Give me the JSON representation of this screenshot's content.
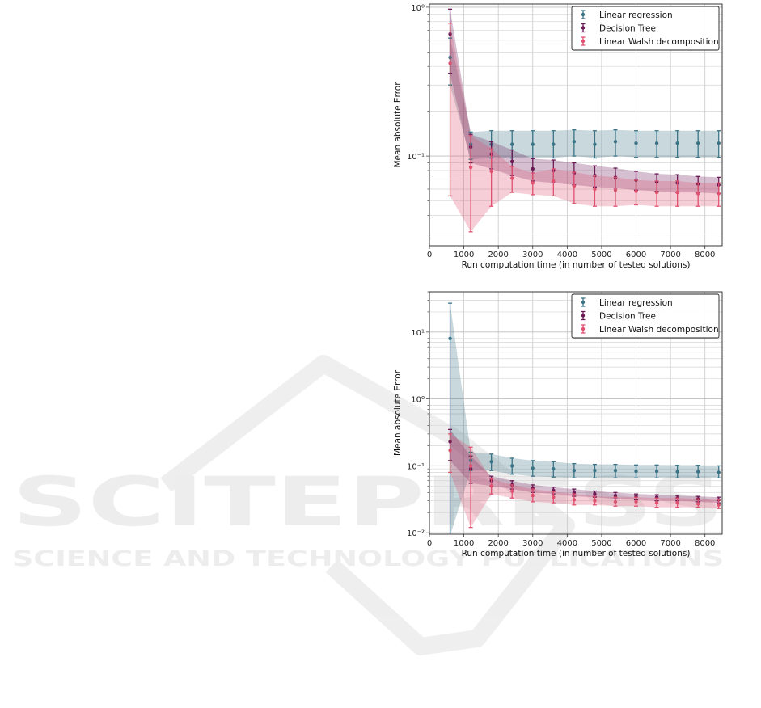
{
  "watermark": {
    "title": "SCITEPRESS",
    "subtitle": "SCIENCE AND TECHNOLOGY PUBLICATIONS"
  },
  "colors": {
    "linear_regression": "#3a7486",
    "decision_tree": "#6b1a55",
    "walsh": "#e0506f"
  },
  "chart_data": [
    {
      "type": "line",
      "xlabel": "Run computation time (in number of tested solutions)",
      "ylabel": "Mean absolute Error",
      "yscale": "log",
      "xlim": [
        0,
        8500
      ],
      "ylim": [
        0.025,
        1.05
      ],
      "xticks": [
        0,
        1000,
        2000,
        3000,
        4000,
        5000,
        6000,
        7000,
        8000
      ],
      "yticks": [
        {
          "value": 1,
          "label": "10⁰"
        },
        {
          "value": 0.1,
          "label": "10⁻¹"
        }
      ],
      "grid": true,
      "legend": "top-right",
      "x": [
        600,
        1200,
        1800,
        2400,
        3000,
        3600,
        4200,
        4800,
        5400,
        6000,
        6600,
        7200,
        7800,
        8400
      ],
      "series": [
        {
          "name": "Linear regression",
          "color_key": "linear_regression",
          "values": [
            0.46,
            0.12,
            0.12,
            0.12,
            0.12,
            0.12,
            0.125,
            0.12,
            0.125,
            0.122,
            0.122,
            0.122,
            0.122,
            0.122
          ],
          "lower": [
            0.3,
            0.095,
            0.097,
            0.097,
            0.097,
            0.097,
            0.1,
            0.097,
            0.1,
            0.098,
            0.098,
            0.098,
            0.098,
            0.098
          ],
          "upper": [
            0.62,
            0.145,
            0.148,
            0.148,
            0.148,
            0.148,
            0.15,
            0.148,
            0.15,
            0.148,
            0.148,
            0.148,
            0.148,
            0.148
          ]
        },
        {
          "name": "Decision Tree",
          "color_key": "decision_tree",
          "values": [
            0.66,
            0.115,
            0.103,
            0.092,
            0.082,
            0.08,
            0.077,
            0.074,
            0.072,
            0.069,
            0.067,
            0.066,
            0.065,
            0.064
          ],
          "lower": [
            0.36,
            0.09,
            0.082,
            0.074,
            0.068,
            0.066,
            0.064,
            0.062,
            0.061,
            0.059,
            0.058,
            0.057,
            0.057,
            0.056
          ],
          "upper": [
            0.97,
            0.14,
            0.125,
            0.11,
            0.096,
            0.094,
            0.09,
            0.086,
            0.083,
            0.079,
            0.076,
            0.075,
            0.073,
            0.072
          ]
        },
        {
          "name": "Linear Walsh decomposition",
          "color_key": "walsh",
          "values": [
            0.42,
            0.084,
            0.079,
            0.071,
            0.066,
            0.068,
            0.063,
            0.06,
            0.059,
            0.058,
            0.057,
            0.057,
            0.056,
            0.056
          ],
          "lower": [
            0.054,
            0.031,
            0.046,
            0.057,
            0.055,
            0.054,
            0.048,
            0.046,
            0.046,
            0.047,
            0.046,
            0.046,
            0.046,
            0.046
          ],
          "upper": [
            0.78,
            0.137,
            0.112,
            0.085,
            0.077,
            0.082,
            0.078,
            0.074,
            0.072,
            0.069,
            0.068,
            0.068,
            0.066,
            0.066
          ]
        }
      ]
    },
    {
      "type": "line",
      "xlabel": "Run computation time (in number of tested solutions)",
      "ylabel": "Mean absolute Error",
      "yscale": "log",
      "xlim": [
        0,
        8500
      ],
      "ylim": [
        0.0095,
        40
      ],
      "xticks": [
        0,
        1000,
        2000,
        3000,
        4000,
        5000,
        6000,
        7000,
        8000
      ],
      "yticks": [
        {
          "value": 10,
          "label": "10¹"
        },
        {
          "value": 1,
          "label": "10⁰"
        },
        {
          "value": 0.1,
          "label": "10⁻¹"
        },
        {
          "value": 0.01,
          "label": "10⁻²"
        }
      ],
      "grid": true,
      "legend": "top-right",
      "x": [
        600,
        1200,
        1800,
        2400,
        3000,
        3600,
        4200,
        4800,
        5400,
        6000,
        6600,
        7200,
        7800,
        8400
      ],
      "series": [
        {
          "name": "Linear regression",
          "color_key": "linear_regression",
          "values": [
            8.0,
            0.12,
            0.115,
            0.1,
            0.092,
            0.09,
            0.085,
            0.085,
            0.085,
            0.083,
            0.083,
            0.082,
            0.082,
            0.08
          ],
          "lower": [
            0.009,
            0.085,
            0.085,
            0.075,
            0.07,
            0.068,
            0.066,
            0.066,
            0.066,
            0.066,
            0.066,
            0.066,
            0.066,
            0.066
          ],
          "upper": [
            27,
            0.16,
            0.15,
            0.13,
            0.12,
            0.115,
            0.108,
            0.105,
            0.105,
            0.103,
            0.103,
            0.102,
            0.102,
            0.1
          ]
        },
        {
          "name": "Decision Tree",
          "color_key": "decision_tree",
          "values": [
            0.23,
            0.09,
            0.06,
            0.052,
            0.046,
            0.043,
            0.04,
            0.038,
            0.036,
            0.035,
            0.034,
            0.033,
            0.032,
            0.031
          ],
          "lower": [
            0.12,
            0.055,
            0.05,
            0.045,
            0.04,
            0.038,
            0.035,
            0.034,
            0.032,
            0.031,
            0.03,
            0.03,
            0.029,
            0.028
          ],
          "upper": [
            0.35,
            0.14,
            0.07,
            0.06,
            0.052,
            0.048,
            0.045,
            0.042,
            0.04,
            0.038,
            0.037,
            0.036,
            0.035,
            0.034
          ]
        },
        {
          "name": "Linear Walsh decomposition",
          "color_key": "walsh",
          "values": [
            0.17,
            0.1,
            0.05,
            0.042,
            0.036,
            0.034,
            0.031,
            0.03,
            0.029,
            0.029,
            0.028,
            0.028,
            0.027,
            0.026
          ],
          "lower": [
            0.08,
            0.012,
            0.038,
            0.033,
            0.029,
            0.028,
            0.026,
            0.026,
            0.025,
            0.025,
            0.024,
            0.024,
            0.024,
            0.023
          ],
          "upper": [
            0.3,
            0.19,
            0.064,
            0.052,
            0.045,
            0.041,
            0.038,
            0.035,
            0.034,
            0.034,
            0.033,
            0.033,
            0.032,
            0.031
          ]
        }
      ]
    }
  ]
}
